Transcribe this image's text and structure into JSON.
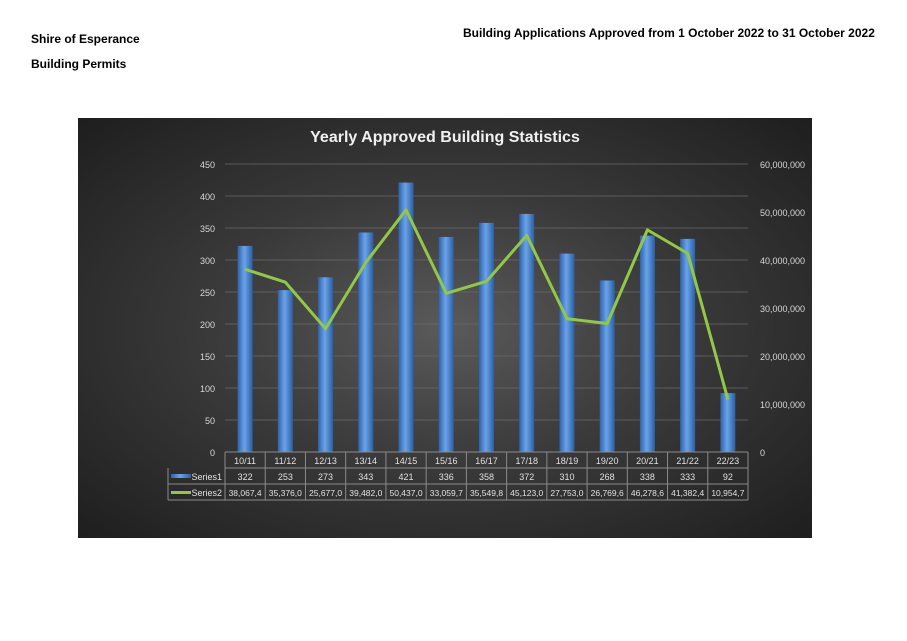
{
  "header": {
    "org": "Shire of Esperance",
    "section": "Building Permits",
    "report_title": "Building Applications Approved from 1 October 2022 to 31 October 2022"
  },
  "chart_data": {
    "type": "bar",
    "title": "Yearly Approved Building Statistics",
    "categories": [
      "10/11",
      "11/12",
      "12/13",
      "13/14",
      "14/15",
      "15/16",
      "16/17",
      "17/18",
      "18/19",
      "19/20",
      "20/21",
      "21/22",
      "22/23"
    ],
    "series": [
      {
        "name": "Series1",
        "type": "bar",
        "axis": "left",
        "color": "#4a86d4",
        "values": [
          322,
          253,
          273,
          343,
          421,
          336,
          358,
          372,
          310,
          268,
          338,
          333,
          92
        ]
      },
      {
        "name": "Series2",
        "type": "line",
        "axis": "right",
        "color": "#92c74a",
        "values": [
          38067400,
          35376000,
          25677000,
          39482000,
          50437000,
          33059700,
          35549800,
          45123000,
          27753000,
          26769600,
          46278600,
          41382400,
          10954700
        ],
        "table_labels": [
          "38,067,4",
          "35,376,0",
          "25,677,0",
          "39,482,0",
          "50,437,0",
          "33,059,7",
          "35,549,8",
          "45,123,0",
          "27,753,0",
          "26,769,6",
          "46,278,6",
          "41,382,4",
          "10,954,7"
        ]
      }
    ],
    "left_axis": {
      "range": [
        0,
        450
      ],
      "ticks": [
        "0",
        "50",
        "100",
        "150",
        "200",
        "250",
        "300",
        "350",
        "400",
        "450"
      ]
    },
    "right_axis": {
      "range": [
        0,
        60000000
      ],
      "ticks": [
        "0",
        "10,000,000",
        "20,000,000",
        "30,000,000",
        "40,000,000",
        "50,000,000",
        "60,000,000"
      ]
    },
    "grid": true,
    "legend": "data-table"
  }
}
